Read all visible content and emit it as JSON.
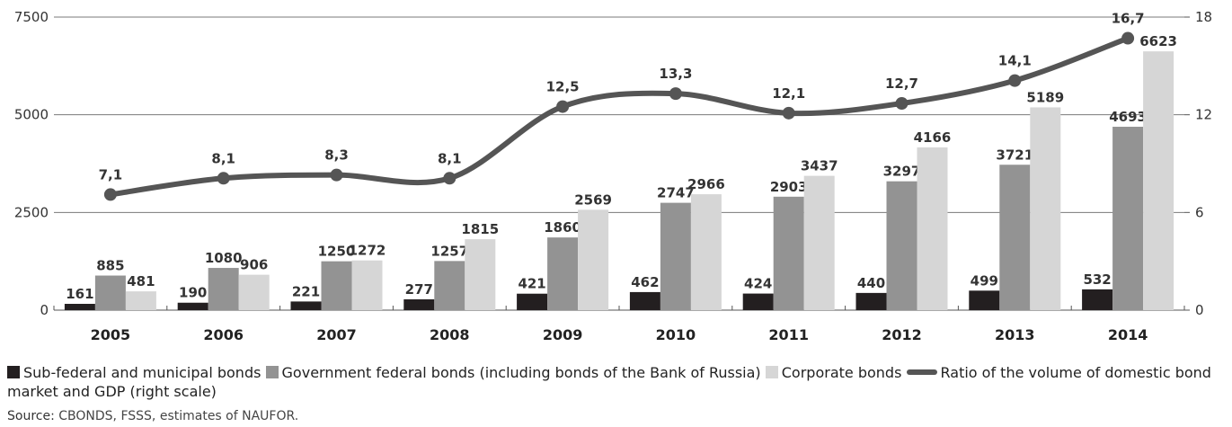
{
  "chart_data": {
    "type": "bar",
    "categories": [
      "2005",
      "2006",
      "2007",
      "2008",
      "2009",
      "2010",
      "2011",
      "2012",
      "2013",
      "2014"
    ],
    "series": [
      {
        "name": "Sub-federal and municipal bonds",
        "values": [
          161,
          190,
          221,
          277,
          421,
          462,
          424,
          440,
          499,
          532
        ],
        "color": "#231f20",
        "axis": "left"
      },
      {
        "name": "Government federal bonds (including bonds of the Bank of Russia)",
        "values": [
          885,
          1080,
          1250,
          1257,
          1860,
          2747,
          2903,
          3297,
          3721,
          4693
        ],
        "color": "#939393",
        "axis": "left"
      },
      {
        "name": "Corporate bonds",
        "values": [
          481,
          906,
          1272,
          1815,
          2569,
          2966,
          3437,
          4166,
          5189,
          6623
        ],
        "color": "#d6d6d6",
        "axis": "left"
      },
      {
        "name": "Ratio of the volume of domestic bond market and GDP (right scale)",
        "type": "line",
        "values": [
          7.1,
          8.1,
          8.3,
          8.1,
          12.5,
          13.3,
          12.1,
          12.7,
          14.1,
          16.7
        ],
        "labels": [
          "7,1",
          "8,1",
          "8,3",
          "8,1",
          "12,5",
          "13,3",
          "12,1",
          "12,7",
          "14,1",
          "16,7"
        ],
        "color": "#555555",
        "axis": "right"
      }
    ],
    "yleft": {
      "ticks": [
        0,
        2500,
        5000,
        7500
      ],
      "ylim": [
        0,
        7500
      ]
    },
    "yright": {
      "ticks": [
        0,
        6,
        12,
        18
      ],
      "ylim": [
        0,
        18
      ]
    },
    "grid": true,
    "legend_position": "bottom"
  },
  "legend": [
    {
      "label": "Sub-federal and municipal bonds",
      "kind": "square",
      "color": "#231f20"
    },
    {
      "label": "Government federal bonds (including bonds of the Bank of Russia)",
      "kind": "square",
      "color": "#939393"
    },
    {
      "label": "Corporate bonds",
      "kind": "square",
      "color": "#d6d6d6"
    },
    {
      "label": "Ratio of the volume of domestic bond market and GDP (right scale)",
      "kind": "line",
      "color": "#555555"
    }
  ],
  "source": {
    "prefix": "Source:",
    "text": "CBONDS, FSSS, estimates of NAUFOR."
  }
}
